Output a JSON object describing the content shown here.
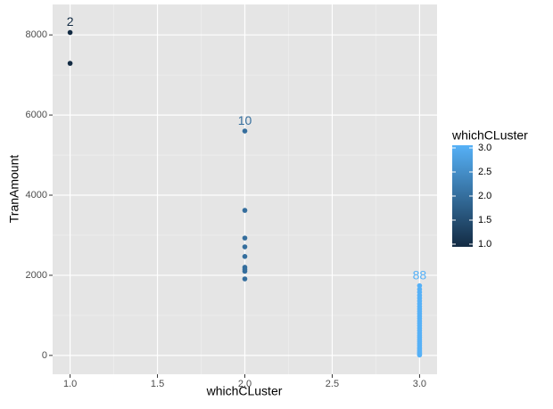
{
  "chart_data": {
    "type": "scatter",
    "x_label": "whichCLuster",
    "y_label": "TranAmount",
    "legend_title": "whichCLuster",
    "xlim": [
      0.9,
      3.1
    ],
    "ylim": [
      -470,
      8760
    ],
    "xticks": [
      {
        "value": 1,
        "label": "1.0"
      },
      {
        "value": 1.5,
        "label": "1.5"
      },
      {
        "value": 2,
        "label": "2.0"
      },
      {
        "value": 2.5,
        "label": "2.5"
      },
      {
        "value": 3,
        "label": "3.0"
      }
    ],
    "yticks": [
      0,
      2000,
      4000,
      6000,
      8000
    ],
    "grid": true,
    "color_scale": {
      "low": "#132B43",
      "high": "#56B1F7",
      "limits": [
        1,
        3
      ],
      "ticks": [
        {
          "value": 1,
          "label": "1.0"
        },
        {
          "value": 1.5,
          "label": "1.5"
        },
        {
          "value": 2,
          "label": "2.0"
        },
        {
          "value": 2.5,
          "label": "2.5"
        },
        {
          "value": 3,
          "label": "3.0"
        }
      ]
    },
    "x": [
      1,
      1,
      2,
      2,
      2,
      2,
      2,
      2,
      2,
      2,
      2,
      3,
      3,
      3,
      3,
      3,
      3,
      3,
      3,
      3,
      3,
      3,
      3,
      3,
      3,
      3,
      3,
      3,
      3,
      3,
      3,
      3,
      3,
      3,
      3,
      3,
      3,
      3,
      3,
      3,
      3,
      3,
      3
    ],
    "values": [
      8060,
      7290,
      5600,
      3620,
      2930,
      2710,
      2470,
      2200,
      2150,
      2100,
      1910,
      10,
      30,
      60,
      90,
      120,
      160,
      200,
      250,
      300,
      350,
      400,
      450,
      500,
      560,
      620,
      680,
      740,
      800,
      860,
      920,
      980,
      1040,
      1100,
      1160,
      1220,
      1290,
      1360,
      1430,
      1500,
      1580,
      1650,
      1740
    ],
    "annotations": [
      {
        "x": 1,
        "count": 2
      },
      {
        "x": 2,
        "count": 10
      },
      {
        "x": 3,
        "count": 88
      }
    ]
  }
}
